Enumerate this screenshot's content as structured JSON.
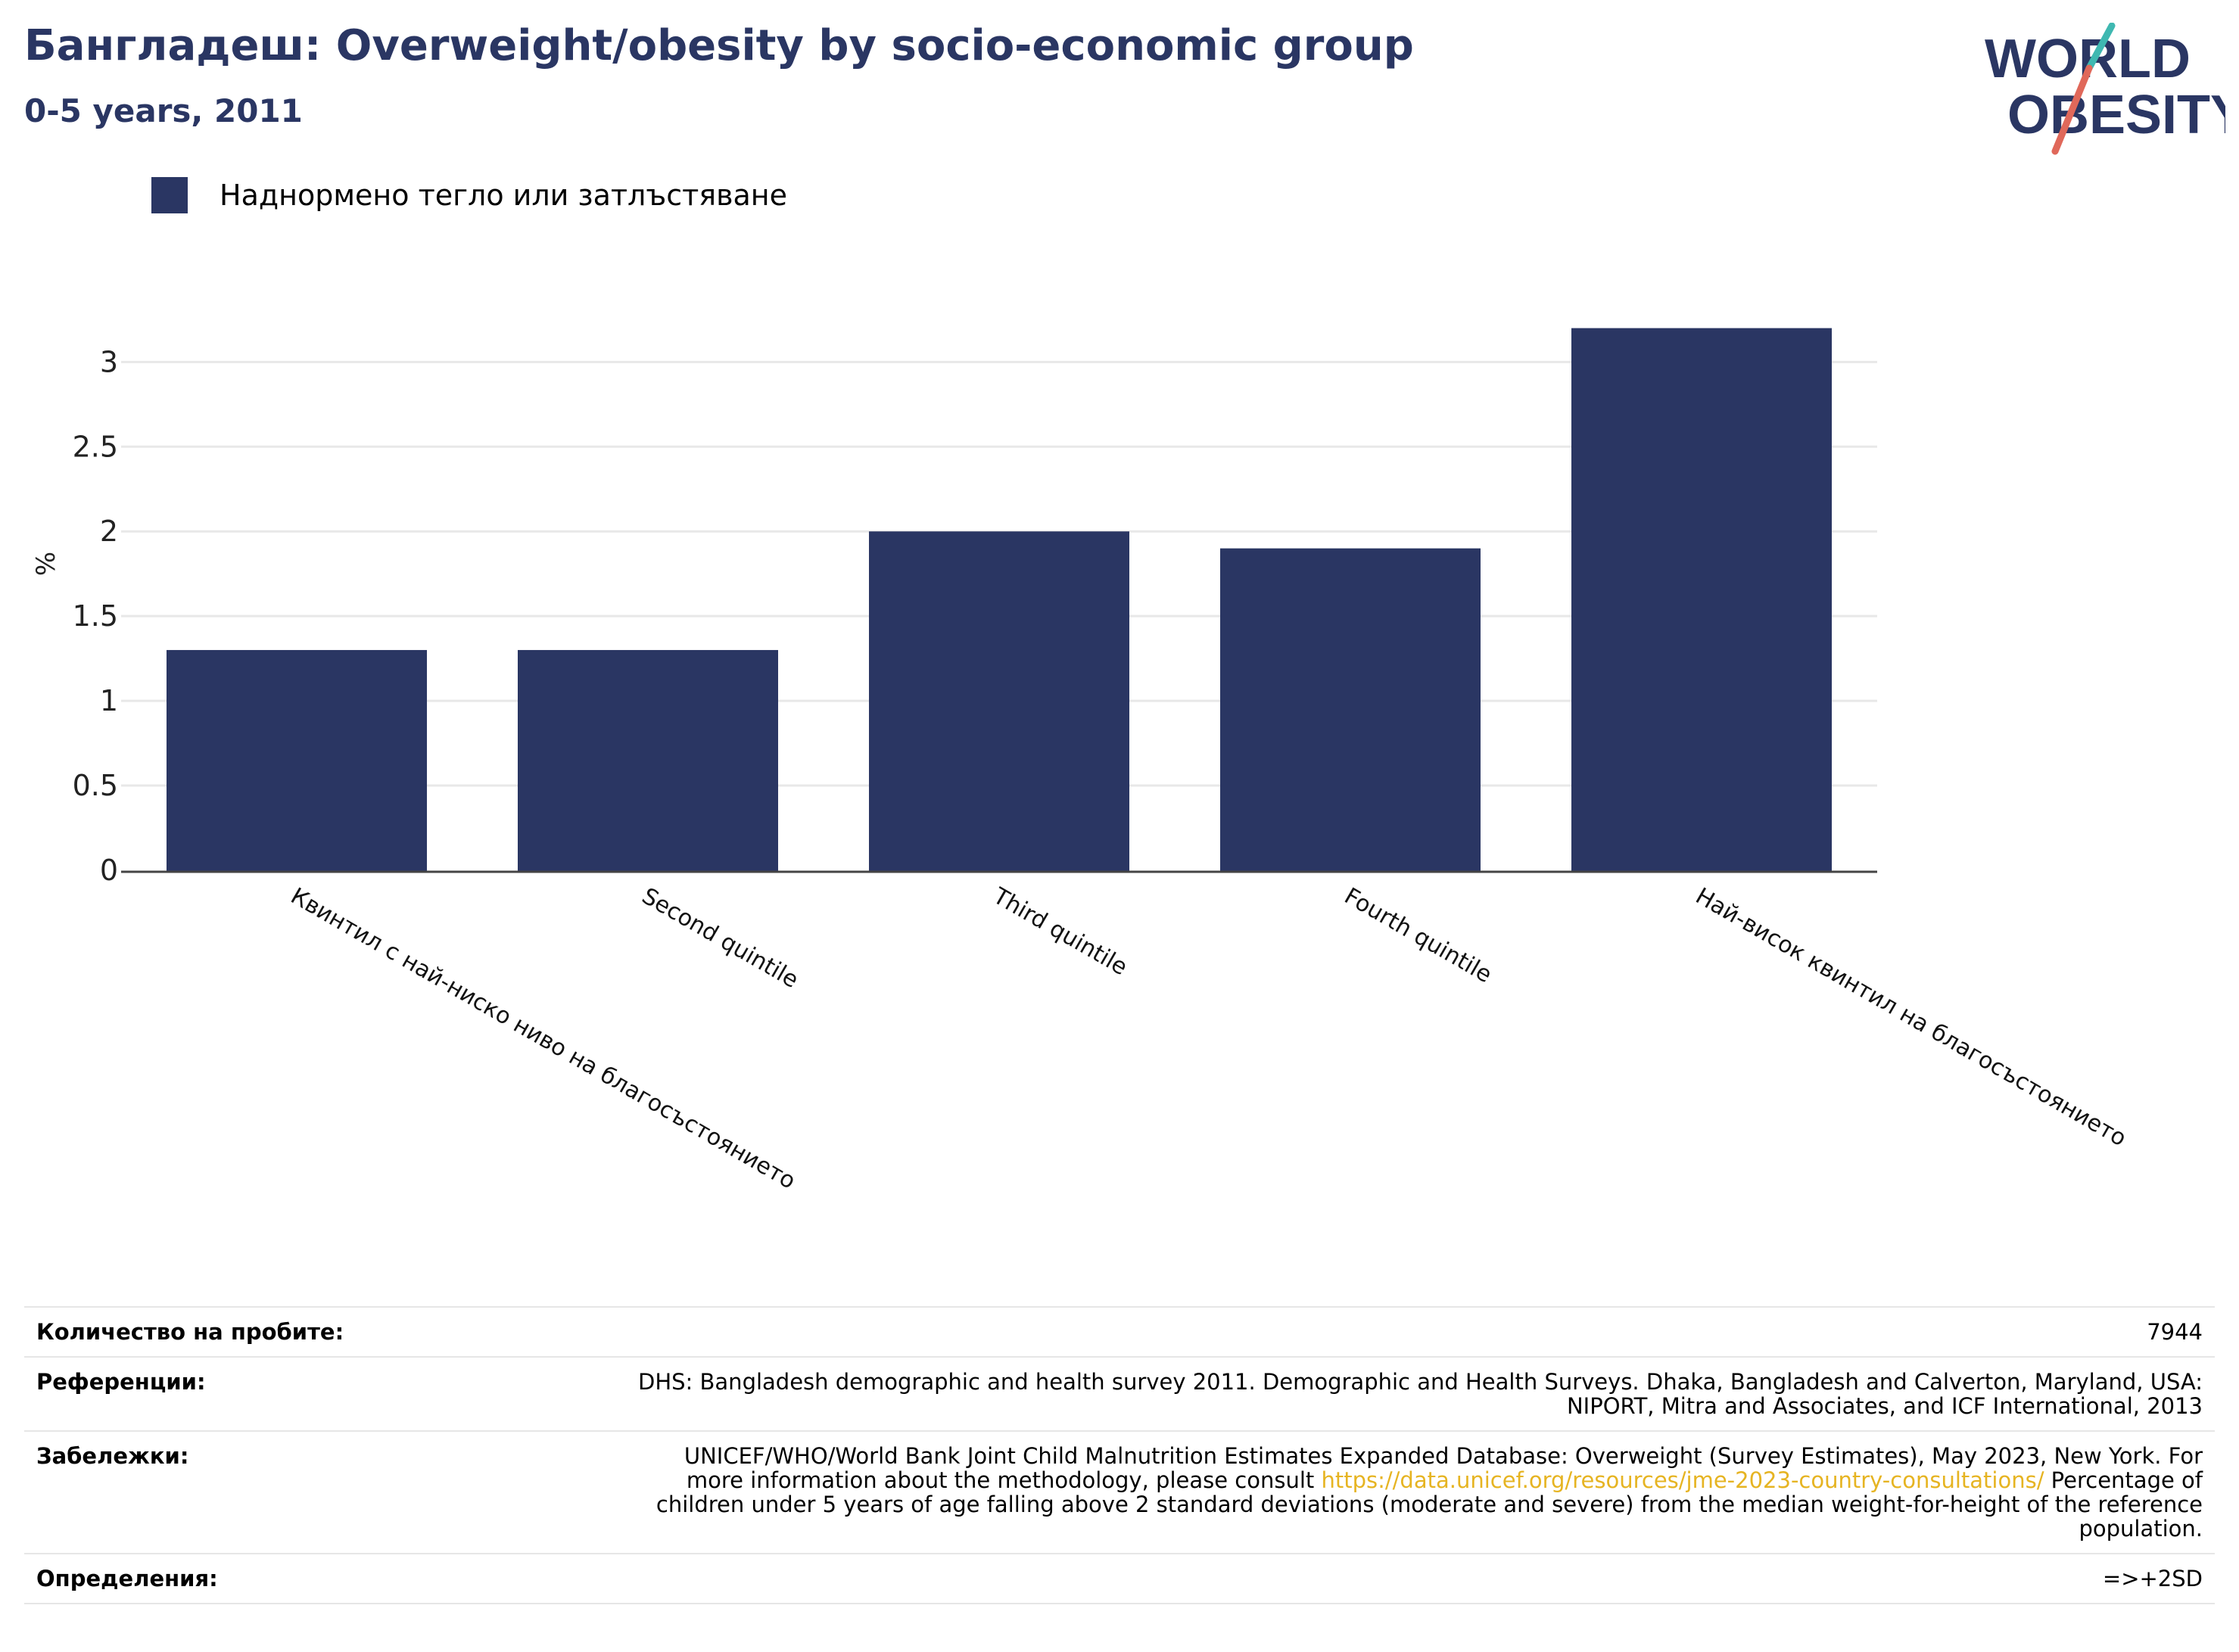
{
  "header": {
    "title": "Бангладеш: Overweight/obesity by socio-economic group",
    "subtitle": "0-5 years, 2011"
  },
  "logo": {
    "line1": "WORLD",
    "line2": "OBESITY"
  },
  "legend": {
    "label": "Наднормено тегло или затлъстяване",
    "color": "#2a3663"
  },
  "chart_data": {
    "type": "bar",
    "title": "Бангладеш: Overweight/obesity by socio-economic group",
    "subtitle": "0-5 years, 2011",
    "ylabel": "%",
    "xlabel": "",
    "categories": [
      "Квинтил с най-ниско ниво на благосъстоянието",
      "Second quintile",
      "Third quintile",
      "Fourth quintile",
      "Най-висок квинтил на благосъстоянието"
    ],
    "series": [
      {
        "name": "Наднормено тегло или затлъстяване",
        "values": [
          1.3,
          1.3,
          2.0,
          1.9,
          3.2
        ],
        "color": "#2a3663"
      }
    ],
    "ylim": [
      0,
      3.35
    ],
    "yticks": [
      "0",
      "0.5",
      "1",
      "1.5",
      "2",
      "2.5",
      "3"
    ],
    "grid": true,
    "legend_position": "top-left"
  },
  "info": {
    "sample_label": "Количество на пробите:",
    "sample_value": "7944",
    "references_label": "Референции:",
    "references_line1": "DHS: Bangladesh demographic and health survey 2011. Demographic and Health Surveys. Dhaka, Bangladesh and Calverton, Maryland, USA:",
    "references_line2": "NIPORT, Mitra and Associates, and ICF International, 2013",
    "notes_label": "Забележки:",
    "notes_line1": "UNICEF/WHO/World Bank Joint Child Malnutrition Estimates Expanded Database: Overweight (Survey Estimates), May 2023, New York. For",
    "notes_line2_pre": "more information about the methodology, please consult ",
    "notes_link": "https://data.unicef.org/resources/jme-2023-country-consultations/",
    "notes_line2_post": " Percentage of",
    "notes_line3": "children under 5 years of age falling above 2 standard deviations (moderate and severe) from the median weight-for-height of the reference",
    "notes_line4": "population.",
    "definitions_label": "Определения:",
    "definitions_value": "=>+2SD"
  }
}
